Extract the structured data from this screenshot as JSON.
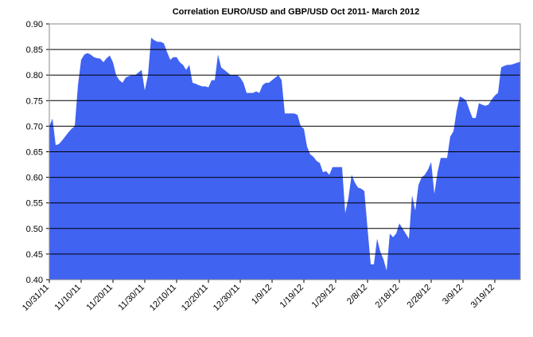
{
  "chart_data": {
    "type": "area",
    "title": "Correlation EURO/USD and GBP/USD Oct 2011- March 2012",
    "color": "#4063f2",
    "grid": true,
    "x": [
      "2011-10-31",
      "2011-11-01",
      "2011-11-02",
      "2011-11-03",
      "2011-11-04",
      "2011-11-05",
      "2011-11-06",
      "2011-11-07",
      "2011-11-08",
      "2011-11-09",
      "2011-11-10",
      "2011-11-11",
      "2011-11-12",
      "2011-11-13",
      "2011-11-14",
      "2011-11-15",
      "2011-11-16",
      "2011-11-17",
      "2011-11-18",
      "2011-11-19",
      "2011-11-20",
      "2011-11-21",
      "2011-11-22",
      "2011-11-23",
      "2011-11-24",
      "2011-11-25",
      "2011-11-26",
      "2011-11-27",
      "2011-11-28",
      "2011-11-29",
      "2011-11-30",
      "2011-12-01",
      "2011-12-02",
      "2011-12-03",
      "2011-12-04",
      "2011-12-05",
      "2011-12-06",
      "2011-12-07",
      "2011-12-08",
      "2011-12-09",
      "2011-12-10",
      "2011-12-11",
      "2011-12-12",
      "2011-12-13",
      "2011-12-14",
      "2011-12-15",
      "2011-12-16",
      "2011-12-17",
      "2011-12-18",
      "2011-12-19",
      "2011-12-20",
      "2011-12-21",
      "2011-12-22",
      "2011-12-23",
      "2011-12-24",
      "2011-12-25",
      "2011-12-26",
      "2011-12-27",
      "2011-12-28",
      "2011-12-29",
      "2011-12-30",
      "2011-12-31",
      "2012-01-01",
      "2012-01-02",
      "2012-01-03",
      "2012-01-04",
      "2012-01-05",
      "2012-01-06",
      "2012-01-07",
      "2012-01-08",
      "2012-01-09",
      "2012-01-10",
      "2012-01-11",
      "2012-01-12",
      "2012-01-13",
      "2012-01-14",
      "2012-01-15",
      "2012-01-16",
      "2012-01-17",
      "2012-01-18",
      "2012-01-19",
      "2012-01-20",
      "2012-01-21",
      "2012-01-22",
      "2012-01-23",
      "2012-01-24",
      "2012-01-25",
      "2012-01-26",
      "2012-01-27",
      "2012-01-28",
      "2012-01-29",
      "2012-01-30",
      "2012-01-31",
      "2012-02-01",
      "2012-02-02",
      "2012-02-03",
      "2012-02-04",
      "2012-02-05",
      "2012-02-06",
      "2012-02-07",
      "2012-02-08",
      "2012-02-09",
      "2012-02-10",
      "2012-02-11",
      "2012-02-12",
      "2012-02-13",
      "2012-02-14",
      "2012-02-15",
      "2012-02-16",
      "2012-02-17",
      "2012-02-18",
      "2012-02-19",
      "2012-02-20",
      "2012-02-21",
      "2012-02-22",
      "2012-02-23",
      "2012-02-24",
      "2012-02-25",
      "2012-02-26",
      "2012-02-27",
      "2012-02-28",
      "2012-02-29",
      "2012-03-01",
      "2012-03-02",
      "2012-03-03",
      "2012-03-04",
      "2012-03-05",
      "2012-03-06",
      "2012-03-07",
      "2012-03-08",
      "2012-03-09",
      "2012-03-10",
      "2012-03-11",
      "2012-03-12",
      "2012-03-13",
      "2012-03-14",
      "2012-03-15",
      "2012-03-16",
      "2012-03-17",
      "2012-03-18",
      "2012-03-19",
      "2012-03-20",
      "2012-03-21",
      "2012-03-22",
      "2012-03-23",
      "2012-03-24",
      "2012-03-25",
      "2012-03-26",
      "2012-03-27"
    ],
    "values": [
      0.7,
      0.715,
      0.663,
      0.665,
      0.672,
      0.68,
      0.688,
      0.695,
      0.7,
      0.78,
      0.83,
      0.84,
      0.843,
      0.84,
      0.835,
      0.833,
      0.832,
      0.825,
      0.833,
      0.838,
      0.825,
      0.8,
      0.79,
      0.785,
      0.795,
      0.798,
      0.8,
      0.8,
      0.805,
      0.81,
      0.77,
      0.8,
      0.873,
      0.868,
      0.865,
      0.865,
      0.862,
      0.845,
      0.83,
      0.835,
      0.835,
      0.825,
      0.82,
      0.81,
      0.82,
      0.785,
      0.783,
      0.78,
      0.778,
      0.778,
      0.776,
      0.79,
      0.79,
      0.84,
      0.815,
      0.81,
      0.805,
      0.8,
      0.8,
      0.8,
      0.795,
      0.785,
      0.765,
      0.765,
      0.765,
      0.768,
      0.765,
      0.78,
      0.785,
      0.785,
      0.79,
      0.795,
      0.8,
      0.79,
      0.725,
      0.725,
      0.725,
      0.725,
      0.722,
      0.7,
      0.695,
      0.66,
      0.645,
      0.64,
      0.632,
      0.628,
      0.61,
      0.612,
      0.605,
      0.62,
      0.62,
      0.62,
      0.62,
      0.53,
      0.56,
      0.605,
      0.59,
      0.58,
      0.578,
      0.573,
      0.5,
      0.43,
      0.43,
      0.48,
      0.455,
      0.44,
      0.418,
      0.49,
      0.483,
      0.49,
      0.51,
      0.5,
      0.49,
      0.48,
      0.565,
      0.535,
      0.585,
      0.6,
      0.605,
      0.615,
      0.63,
      0.568,
      0.61,
      0.638,
      0.638,
      0.638,
      0.68,
      0.69,
      0.73,
      0.758,
      0.755,
      0.75,
      0.732,
      0.716,
      0.716,
      0.745,
      0.742,
      0.74,
      0.742,
      0.752,
      0.76,
      0.765,
      0.815,
      0.818,
      0.82,
      0.82,
      0.822,
      0.824,
      0.826
    ],
    "xlim": [
      "2011-10-31",
      "2012-03-27"
    ],
    "xticks": [
      {
        "value": "2011-10-31",
        "label": "10/31/11"
      },
      {
        "value": "2011-11-10",
        "label": "11/10/11"
      },
      {
        "value": "2011-11-20",
        "label": "11/20/11"
      },
      {
        "value": "2011-11-30",
        "label": "11/30/11"
      },
      {
        "value": "2011-12-10",
        "label": "12/10/11"
      },
      {
        "value": "2011-12-20",
        "label": "12/20/11"
      },
      {
        "value": "2011-12-30",
        "label": "12/30/11"
      },
      {
        "value": "2012-01-09",
        "label": "1/9/12"
      },
      {
        "value": "2012-01-19",
        "label": "1/19/12"
      },
      {
        "value": "2012-01-29",
        "label": "1/29/12"
      },
      {
        "value": "2012-02-08",
        "label": "2/8/12"
      },
      {
        "value": "2012-02-18",
        "label": "2/18/12"
      },
      {
        "value": "2012-02-28",
        "label": "2/28/12"
      },
      {
        "value": "2012-03-09",
        "label": "3/9/12"
      },
      {
        "value": "2012-03-19",
        "label": "3/19/12"
      }
    ],
    "ylim": [
      0.4,
      0.9
    ],
    "yticks": [
      {
        "value": 0.4,
        "label": "0.40"
      },
      0.45,
      {
        "value": 0.5,
        "label": "0.50"
      },
      0.55,
      {
        "value": 0.6,
        "label": "0.60"
      },
      0.65,
      {
        "value": 0.7,
        "label": "0.70"
      },
      0.75,
      {
        "value": 0.8,
        "label": "0.80"
      },
      0.85,
      {
        "value": 0.9,
        "label": "0.90"
      }
    ]
  }
}
